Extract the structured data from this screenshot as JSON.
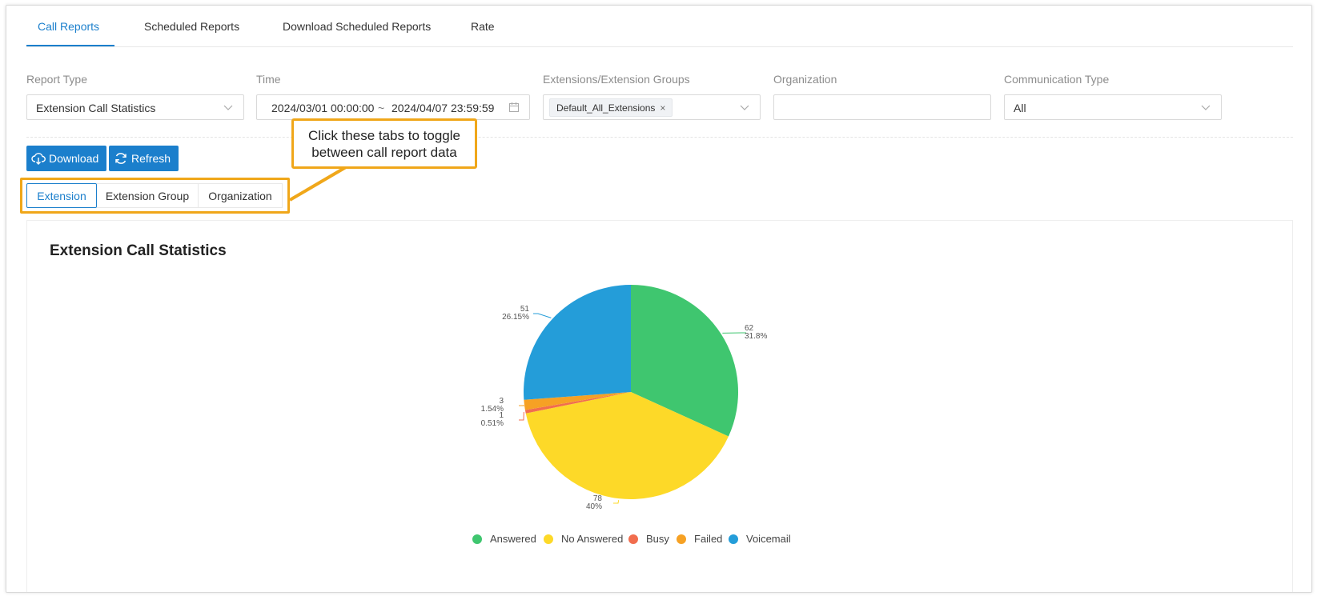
{
  "top_tabs": [
    {
      "label": "Call Reports",
      "active": true
    },
    {
      "label": "Scheduled Reports",
      "active": false
    },
    {
      "label": "Download Scheduled Reports",
      "active": false
    },
    {
      "label": "Rate",
      "active": false
    }
  ],
  "filters": {
    "report_type": {
      "label": "Report Type",
      "value": "Extension Call Statistics"
    },
    "time": {
      "label": "Time",
      "start": "2024/03/01 00:00:00",
      "separator": "~",
      "end": "2024/04/07 23:59:59"
    },
    "extensions": {
      "label": "Extensions/Extension Groups",
      "tag": "Default_All_Extensions",
      "tag_close": "×"
    },
    "organization": {
      "label": "Organization",
      "value": ""
    },
    "communication_type": {
      "label": "Communication Type",
      "value": "All"
    }
  },
  "buttons": {
    "download": "Download",
    "refresh": "Refresh"
  },
  "sub_tabs": [
    {
      "label": "Extension",
      "active": true
    },
    {
      "label": "Extension Group",
      "active": false
    },
    {
      "label": "Organization",
      "active": false
    }
  ],
  "callout": {
    "line1": "Click these tabs to toggle",
    "line2": "between call report data"
  },
  "chart_card": {
    "title": "Extension Call Statistics"
  },
  "colors": {
    "accent": "#1b7fcc",
    "highlight": "#f0a71a"
  },
  "chart_data": {
    "type": "pie",
    "title": "Extension Call Statistics",
    "slices": [
      {
        "name": "Answered",
        "value": 62,
        "percent": "31.8%",
        "color": "#3fc66f"
      },
      {
        "name": "No Answered",
        "value": 78,
        "percent": "40%",
        "color": "#fdd928"
      },
      {
        "name": "Busy",
        "value": 1,
        "percent": "0.51%",
        "color": "#f16d4e"
      },
      {
        "name": "Failed",
        "value": 3,
        "percent": "1.54%",
        "color": "#f6a124"
      },
      {
        "name": "Voicemail",
        "value": 51,
        "percent": "26.15%",
        "color": "#249dd9"
      }
    ],
    "legend_position": "bottom-center"
  }
}
